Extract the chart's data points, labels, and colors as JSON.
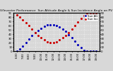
{
  "title": "Solar PV/Inverter Performance  Sun Altitude Angle & Sun Incidence Angle on PV Panels",
  "x_vals": [
    6.0,
    6.5,
    7.0,
    7.5,
    8.0,
    8.5,
    9.0,
    9.5,
    10.0,
    10.5,
    11.0,
    11.5,
    12.0,
    12.5,
    13.0,
    13.5,
    14.0,
    14.5,
    15.0,
    15.5,
    16.0,
    16.5,
    17.0,
    17.5,
    18.0,
    18.5,
    19.0
  ],
  "sun_altitude": [
    0,
    5,
    12,
    20,
    28,
    36,
    43,
    49,
    54,
    58,
    61,
    62,
    62,
    60,
    57,
    52,
    46,
    39,
    31,
    23,
    15,
    8,
    2,
    0,
    0,
    0,
    0
  ],
  "sun_incidence": [
    85,
    80,
    74,
    67,
    60,
    52,
    44,
    37,
    31,
    26,
    22,
    20,
    20,
    22,
    26,
    31,
    37,
    44,
    52,
    60,
    68,
    76,
    83,
    88,
    90,
    90,
    90
  ],
  "ylim": [
    0,
    90
  ],
  "yticks": [
    0,
    10,
    20,
    30,
    40,
    50,
    60,
    70,
    80,
    90
  ],
  "xlim": [
    5.5,
    19.5
  ],
  "xtick_positions": [
    6,
    7,
    8,
    9,
    10,
    11,
    12,
    13,
    14,
    15,
    16,
    17,
    18,
    19
  ],
  "xtick_labels": [
    "6:00",
    "7:00",
    "8:00",
    "9:00",
    "10:00",
    "11:00",
    "12:00",
    "13:00",
    "14:00",
    "15:00",
    "16:00",
    "17:00",
    "18:00",
    "19:00"
  ],
  "color_altitude": "#0000bb",
  "color_incidence": "#cc0000",
  "legend_altitude": "Sun Alt",
  "legend_incidence": "Sun Inc",
  "bg_color": "#d8d8d8",
  "grid_color": "#ffffff",
  "marker_size": 1.2,
  "title_fontsize": 3.2,
  "tick_fontsize": 2.8,
  "legend_fontsize": 2.8
}
